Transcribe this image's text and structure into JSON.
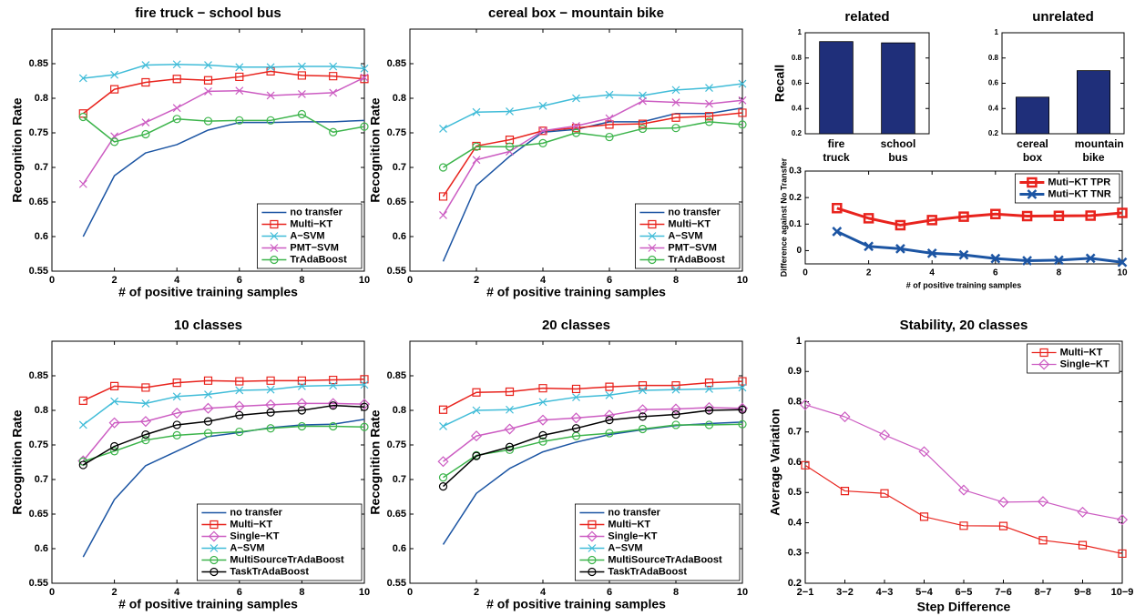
{
  "chart_data": [
    {
      "type": "line",
      "title": "fire truck − school bus",
      "xlabel": "# of positive training samples",
      "ylabel": "Recognition Rate",
      "x": [
        1,
        2,
        3,
        4,
        5,
        6,
        7,
        8,
        9,
        10
      ],
      "xlim": [
        0,
        10
      ],
      "xticks": [
        0,
        2,
        4,
        6,
        8,
        10
      ],
      "ylim": [
        0.55,
        0.9
      ],
      "yticks": [
        0.55,
        0.6,
        0.65,
        0.7,
        0.75,
        0.8,
        0.85
      ],
      "legend": "lower right",
      "series": [
        {
          "name": "no transfer",
          "color": "#1c55a3",
          "marker": "none",
          "values": [
            0.6,
            0.688,
            0.721,
            0.733,
            0.754,
            0.765,
            0.765,
            0.766,
            0.766,
            0.768
          ]
        },
        {
          "name": "Multi−KT",
          "color": "#e8231d",
          "marker": "square",
          "values": [
            0.778,
            0.813,
            0.823,
            0.828,
            0.826,
            0.831,
            0.839,
            0.833,
            0.832,
            0.828
          ]
        },
        {
          "name": "A−SVM",
          "color": "#40bcd8",
          "marker": "x",
          "values": [
            0.829,
            0.834,
            0.848,
            0.849,
            0.848,
            0.845,
            0.845,
            0.846,
            0.846,
            0.843
          ]
        },
        {
          "name": "PMT−SVM",
          "color": "#cc5cc2",
          "marker": "x",
          "values": [
            0.676,
            0.745,
            0.765,
            0.786,
            0.81,
            0.811,
            0.804,
            0.806,
            0.808,
            0.83
          ]
        },
        {
          "name": "TrAdaBoost",
          "color": "#3cb44b",
          "marker": "circle",
          "values": [
            0.773,
            0.737,
            0.748,
            0.77,
            0.767,
            0.768,
            0.768,
            0.777,
            0.751,
            0.759
          ]
        }
      ]
    },
    {
      "type": "line",
      "title": "cereal box − mountain bike",
      "xlabel": "# of positive training samples",
      "ylabel": "Recognition Rate",
      "x": [
        1,
        2,
        3,
        4,
        5,
        6,
        7,
        8,
        9,
        10
      ],
      "xlim": [
        0,
        10
      ],
      "xticks": [
        0,
        2,
        4,
        6,
        8,
        10
      ],
      "ylim": [
        0.55,
        0.9
      ],
      "yticks": [
        0.55,
        0.6,
        0.65,
        0.7,
        0.75,
        0.8,
        0.85
      ],
      "legend": "lower right",
      "series": [
        {
          "name": "no transfer",
          "color": "#1c55a3",
          "marker": "none",
          "values": [
            0.564,
            0.674,
            0.716,
            0.751,
            0.755,
            0.766,
            0.766,
            0.778,
            0.778,
            0.786
          ]
        },
        {
          "name": "Multi−KT",
          "color": "#e8231d",
          "marker": "square",
          "values": [
            0.658,
            0.731,
            0.74,
            0.753,
            0.757,
            0.762,
            0.763,
            0.772,
            0.774,
            0.779
          ]
        },
        {
          "name": "A−SVM",
          "color": "#40bcd8",
          "marker": "x",
          "values": [
            0.756,
            0.78,
            0.781,
            0.789,
            0.8,
            0.805,
            0.804,
            0.812,
            0.815,
            0.821
          ]
        },
        {
          "name": "PMT−SVM",
          "color": "#cc5cc2",
          "marker": "x",
          "values": [
            0.631,
            0.711,
            0.723,
            0.753,
            0.76,
            0.771,
            0.796,
            0.794,
            0.792,
            0.797
          ]
        },
        {
          "name": "TrAdaBoost",
          "color": "#3cb44b",
          "marker": "circle",
          "values": [
            0.7,
            0.73,
            0.73,
            0.735,
            0.75,
            0.744,
            0.756,
            0.757,
            0.766,
            0.762
          ]
        }
      ]
    },
    {
      "type": "bar",
      "title": "related",
      "ylabel": "Recall",
      "categories": [
        "fire truck",
        "school bus"
      ],
      "values": [
        0.93,
        0.92
      ],
      "color": "#1f2f7a",
      "ylim": [
        0.2,
        1
      ],
      "yticks": [
        0.2,
        0.4,
        0.6,
        0.8,
        1
      ]
    },
    {
      "type": "bar",
      "title": "unrelated",
      "categories": [
        "cereal box",
        "mountain bike"
      ],
      "values": [
        0.49,
        0.7
      ],
      "color": "#1f2f7a",
      "ylim": [
        0.2,
        1
      ],
      "yticks": [
        0.2,
        0.4,
        0.6,
        0.8,
        1
      ]
    },
    {
      "type": "line",
      "xlabel": "# of positive training samples",
      "ylabel": "Difference against No Transfer",
      "x": [
        1,
        2,
        3,
        4,
        5,
        6,
        7,
        8,
        9,
        10
      ],
      "xlim": [
        0,
        10
      ],
      "xticks": [
        0,
        2,
        4,
        6,
        8,
        10
      ],
      "ylim": [
        -0.05,
        0.3
      ],
      "yticks": [
        0,
        0.1,
        0.2,
        0.3
      ],
      "legend": "upper right",
      "series": [
        {
          "name": "Muti−KT TPR",
          "color": "#e8231d",
          "marker": "square",
          "values": [
            0.16,
            0.122,
            0.096,
            0.115,
            0.128,
            0.138,
            0.13,
            0.131,
            0.132,
            0.142
          ]
        },
        {
          "name": "Muti−KT TNR",
          "color": "#1c55a3",
          "marker": "x",
          "values": [
            0.072,
            0.016,
            0.007,
            -0.01,
            -0.016,
            -0.03,
            -0.038,
            -0.036,
            -0.029,
            -0.044
          ]
        }
      ]
    },
    {
      "type": "line",
      "title": "10 classes",
      "xlabel": "# of positive training samples",
      "ylabel": "Recognition Rate",
      "x": [
        1,
        2,
        3,
        4,
        5,
        6,
        7,
        8,
        9,
        10
      ],
      "xlim": [
        0,
        10
      ],
      "xticks": [
        0,
        2,
        4,
        6,
        8,
        10
      ],
      "ylim": [
        0.55,
        0.9
      ],
      "yticks": [
        0.55,
        0.6,
        0.65,
        0.7,
        0.75,
        0.8,
        0.85
      ],
      "legend": "lower right",
      "series": [
        {
          "name": "no transfer",
          "color": "#1c55a3",
          "marker": "none",
          "values": [
            0.588,
            0.671,
            0.72,
            0.741,
            0.762,
            0.768,
            0.775,
            0.779,
            0.78,
            0.787
          ]
        },
        {
          "name": "Multi−KT",
          "color": "#e8231d",
          "marker": "square",
          "values": [
            0.814,
            0.835,
            0.833,
            0.84,
            0.843,
            0.842,
            0.843,
            0.843,
            0.844,
            0.845
          ]
        },
        {
          "name": "Single−KT",
          "color": "#cc5cc2",
          "marker": "diamond",
          "values": [
            0.727,
            0.782,
            0.784,
            0.796,
            0.803,
            0.806,
            0.808,
            0.81,
            0.81,
            0.809
          ]
        },
        {
          "name": "A−SVM",
          "color": "#40bcd8",
          "marker": "x",
          "values": [
            0.779,
            0.813,
            0.81,
            0.82,
            0.823,
            0.829,
            0.83,
            0.835,
            0.836,
            0.837
          ]
        },
        {
          "name": "MultiSourceTrAdaBoost",
          "color": "#3cb44b",
          "marker": "circle",
          "values": [
            0.726,
            0.741,
            0.757,
            0.764,
            0.767,
            0.769,
            0.774,
            0.777,
            0.777,
            0.776
          ]
        },
        {
          "name": "TaskTrAdaBoost",
          "color": "#000000",
          "marker": "circle",
          "values": [
            0.721,
            0.748,
            0.765,
            0.779,
            0.784,
            0.793,
            0.797,
            0.8,
            0.807,
            0.805
          ]
        }
      ]
    },
    {
      "type": "line",
      "title": "20 classes",
      "xlabel": "# of positive training samples",
      "ylabel": "Recognition Rate",
      "x": [
        1,
        2,
        3,
        4,
        5,
        6,
        7,
        8,
        9,
        10
      ],
      "xlim": [
        0,
        10
      ],
      "xticks": [
        0,
        2,
        4,
        6,
        8,
        10
      ],
      "ylim": [
        0.55,
        0.9
      ],
      "yticks": [
        0.55,
        0.6,
        0.65,
        0.7,
        0.75,
        0.8,
        0.85
      ],
      "legend": "lower right",
      "series": [
        {
          "name": "no transfer",
          "color": "#1c55a3",
          "marker": "none",
          "values": [
            0.606,
            0.68,
            0.716,
            0.74,
            0.754,
            0.765,
            0.772,
            0.778,
            0.781,
            0.783
          ]
        },
        {
          "name": "Multi−KT",
          "color": "#e8231d",
          "marker": "square",
          "values": [
            0.801,
            0.826,
            0.827,
            0.832,
            0.831,
            0.834,
            0.836,
            0.836,
            0.84,
            0.842
          ]
        },
        {
          "name": "Single−KT",
          "color": "#cc5cc2",
          "marker": "diamond",
          "values": [
            0.726,
            0.763,
            0.773,
            0.786,
            0.789,
            0.793,
            0.801,
            0.802,
            0.804,
            0.803
          ]
        },
        {
          "name": "A−SVM",
          "color": "#40bcd8",
          "marker": "x",
          "values": [
            0.777,
            0.8,
            0.801,
            0.812,
            0.819,
            0.822,
            0.829,
            0.83,
            0.831,
            0.833
          ]
        },
        {
          "name": "MultiSourceTrAdaBoost",
          "color": "#3cb44b",
          "marker": "circle",
          "values": [
            0.703,
            0.735,
            0.743,
            0.755,
            0.763,
            0.767,
            0.773,
            0.779,
            0.779,
            0.78
          ]
        },
        {
          "name": "TaskTrAdaBoost",
          "color": "#000000",
          "marker": "circle",
          "values": [
            0.69,
            0.734,
            0.747,
            0.764,
            0.774,
            0.786,
            0.791,
            0.794,
            0.8,
            0.801
          ]
        }
      ]
    },
    {
      "type": "line",
      "title": "Stability, 20 classes",
      "xlabel": "Step Difference",
      "ylabel": "Average Variation",
      "categories": [
        "2−1",
        "3−2",
        "4−3",
        "5−4",
        "6−5",
        "7−6",
        "8−7",
        "9−8",
        "10−9"
      ],
      "ylim": [
        0.2,
        1
      ],
      "yticks": [
        0.2,
        0.3,
        0.4,
        0.5,
        0.6,
        0.7,
        0.8,
        0.9,
        1
      ],
      "legend": "upper right",
      "series": [
        {
          "name": "Multi−KT",
          "color": "#e8231d",
          "marker": "square",
          "values": [
            0.59,
            0.505,
            0.497,
            0.42,
            0.39,
            0.389,
            0.342,
            0.326,
            0.298
          ]
        },
        {
          "name": "Single−KT",
          "color": "#cc5cc2",
          "marker": "diamond",
          "values": [
            0.79,
            0.75,
            0.69,
            0.635,
            0.508,
            0.468,
            0.47,
            0.435,
            0.41
          ]
        }
      ]
    }
  ]
}
